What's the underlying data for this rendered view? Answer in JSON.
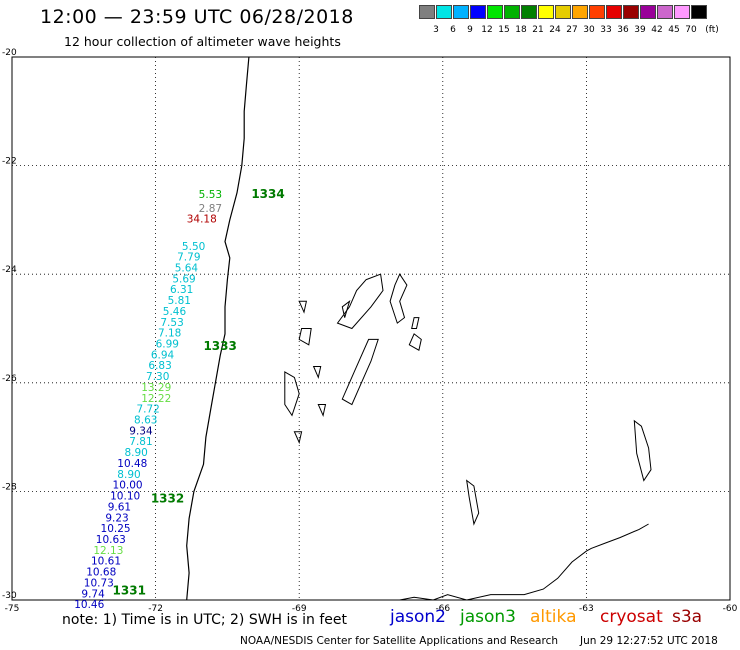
{
  "title": "12:00 — 23:59 UTC 06/28/2018",
  "subtitle": "12 hour collection of altimeter wave heights",
  "scale": {
    "unit": "(ft)",
    "colors": [
      "#7f7f7f",
      "#00e5e5",
      "#00b2ff",
      "#0000ff",
      "#00e500",
      "#00b200",
      "#008000",
      "#ffff00",
      "#e5cc00",
      "#ffa500",
      "#ff3f00",
      "#e50000",
      "#990000",
      "#990099",
      "#cc66cc",
      "#ff99ff",
      "#000000"
    ],
    "labels": [
      "3",
      "6",
      "9",
      "12",
      "15",
      "18",
      "21",
      "24",
      "27",
      "30",
      "33",
      "36",
      "39",
      "42",
      "45",
      "70"
    ]
  },
  "axes": {
    "lat_labels": [
      "-20",
      "-22",
      "-24",
      "-26",
      "-28",
      "-30"
    ],
    "lon_labels": [
      "-75",
      "-72",
      "-69",
      "-66",
      "-63",
      "-60"
    ],
    "lat_range": [
      -30,
      -20
    ],
    "lon_range": [
      -75,
      -60
    ],
    "grid": true
  },
  "passes": [
    {
      "label": "1334",
      "color": "#007a00",
      "lon": -70.0,
      "lat": -22.6
    },
    {
      "label": "1333",
      "color": "#007a00",
      "lon": -71.0,
      "lat": -25.4
    },
    {
      "label": "1332",
      "color": "#007a00",
      "lon": -72.1,
      "lat": -28.2
    },
    {
      "label": "1331",
      "color": "#007a00",
      "lon": -72.9,
      "lat": -29.9
    }
  ],
  "wave_labels": [
    {
      "text": "5.53",
      "color": "#00b200",
      "lon": -71.1,
      "lat": -22.6
    },
    {
      "text": "2.87",
      "color": "#7f7f7f",
      "lon": -71.1,
      "lat": -22.85
    },
    {
      "text": "34.18",
      "color": "#b00000",
      "lon": -71.35,
      "lat": -23.05
    },
    {
      "text": "5.50",
      "color": "#00c0d0",
      "lon": -71.45,
      "lat": -23.55
    },
    {
      "text": "7.79",
      "color": "#00c0d0",
      "lon": -71.55,
      "lat": -23.75
    },
    {
      "text": "5.64",
      "color": "#00c0d0",
      "lon": -71.6,
      "lat": -23.95
    },
    {
      "text": "5.69",
      "color": "#00c0d0",
      "lon": -71.65,
      "lat": -24.15
    },
    {
      "text": "6.31",
      "color": "#00c0d0",
      "lon": -71.7,
      "lat": -24.35
    },
    {
      "text": "5.81",
      "color": "#00c0d0",
      "lon": -71.75,
      "lat": -24.55
    },
    {
      "text": "5.46",
      "color": "#00c0d0",
      "lon": -71.85,
      "lat": -24.75
    },
    {
      "text": "7.53",
      "color": "#00c0d0",
      "lon": -71.9,
      "lat": -24.95
    },
    {
      "text": "7.18",
      "color": "#00c0d0",
      "lon": -71.95,
      "lat": -25.15
    },
    {
      "text": "6.99",
      "color": "#00c0d0",
      "lon": -72.0,
      "lat": -25.35
    },
    {
      "text": "6.94",
      "color": "#00c0d0",
      "lon": -72.1,
      "lat": -25.55
    },
    {
      "text": "6.83",
      "color": "#00c0d0",
      "lon": -72.15,
      "lat": -25.75
    },
    {
      "text": "7.30",
      "color": "#00c0d0",
      "lon": -72.2,
      "lat": -25.95
    },
    {
      "text": "13.29",
      "color": "#66dd44",
      "lon": -72.3,
      "lat": -26.15
    },
    {
      "text": "12.22",
      "color": "#66dd44",
      "lon": -72.3,
      "lat": -26.35
    },
    {
      "text": "7.72",
      "color": "#00c0d0",
      "lon": -72.4,
      "lat": -26.55
    },
    {
      "text": "8.63",
      "color": "#00c0d0",
      "lon": -72.45,
      "lat": -26.75
    },
    {
      "text": "9.34",
      "color": "#000080",
      "lon": -72.55,
      "lat": -26.95
    },
    {
      "text": "7.81",
      "color": "#00c0d0",
      "lon": -72.55,
      "lat": -27.15
    },
    {
      "text": "8.90",
      "color": "#00c0d0",
      "lon": -72.65,
      "lat": -27.35
    },
    {
      "text": "10.48",
      "color": "#0000c0",
      "lon": -72.8,
      "lat": -27.55
    },
    {
      "text": "8.90",
      "color": "#00c0d0",
      "lon": -72.8,
      "lat": -27.75
    },
    {
      "text": "10.00",
      "color": "#0000c0",
      "lon": -72.9,
      "lat": -27.95
    },
    {
      "text": "10.10",
      "color": "#0000c0",
      "lon": -72.95,
      "lat": -28.15
    },
    {
      "text": "9.61",
      "color": "#0000c0",
      "lon": -73.0,
      "lat": -28.35
    },
    {
      "text": "9.23",
      "color": "#0000c0",
      "lon": -73.05,
      "lat": -28.55
    },
    {
      "text": "10.25",
      "color": "#0000c0",
      "lon": -73.15,
      "lat": -28.75
    },
    {
      "text": "10.63",
      "color": "#0000c0",
      "lon": -73.25,
      "lat": -28.95
    },
    {
      "text": "12.13",
      "color": "#66dd44",
      "lon": -73.3,
      "lat": -29.15
    },
    {
      "text": "10.61",
      "color": "#0000c0",
      "lon": -73.35,
      "lat": -29.35
    },
    {
      "text": "10.68",
      "color": "#0000c0",
      "lon": -73.45,
      "lat": -29.55
    },
    {
      "text": "10.73",
      "color": "#0000c0",
      "lon": -73.5,
      "lat": -29.75
    },
    {
      "text": "9.74",
      "color": "#0000c0",
      "lon": -73.55,
      "lat": -29.95
    },
    {
      "text": "10.46",
      "color": "#0000c0",
      "lon": -73.7,
      "lat": -30.15
    }
  ],
  "coastline": [
    [
      -70.05,
      -20.0
    ],
    [
      -70.1,
      -20.5
    ],
    [
      -70.15,
      -21.0
    ],
    [
      -70.15,
      -21.5
    ],
    [
      -70.2,
      -22.0
    ],
    [
      -70.3,
      -22.5
    ],
    [
      -70.45,
      -23.0
    ],
    [
      -70.55,
      -23.4
    ],
    [
      -70.45,
      -23.7
    ],
    [
      -70.5,
      -24.1
    ],
    [
      -70.55,
      -24.6
    ],
    [
      -70.55,
      -25.1
    ],
    [
      -70.65,
      -25.5
    ],
    [
      -70.75,
      -26.0
    ],
    [
      -70.85,
      -26.5
    ],
    [
      -70.95,
      -27.0
    ],
    [
      -71.0,
      -27.5
    ],
    [
      -71.2,
      -28.0
    ],
    [
      -71.3,
      -28.5
    ],
    [
      -71.35,
      -29.0
    ],
    [
      -71.3,
      -29.5
    ],
    [
      -71.35,
      -30.0
    ]
  ],
  "lakes": [
    [
      [
        -67.6,
        -24.1
      ],
      [
        -67.3,
        -24.0
      ],
      [
        -67.25,
        -24.3
      ],
      [
        -67.5,
        -24.6
      ],
      [
        -67.9,
        -25.0
      ],
      [
        -68.2,
        -24.9
      ],
      [
        -67.95,
        -24.6
      ],
      [
        -67.8,
        -24.3
      ]
    ],
    [
      [
        -67.0,
        -24.2
      ],
      [
        -66.9,
        -24.0
      ],
      [
        -66.75,
        -24.2
      ],
      [
        -66.9,
        -24.5
      ],
      [
        -66.8,
        -24.8
      ],
      [
        -66.95,
        -24.9
      ],
      [
        -67.1,
        -24.5
      ]
    ],
    [
      [
        -67.55,
        -25.2
      ],
      [
        -67.35,
        -25.2
      ],
      [
        -67.5,
        -25.6
      ],
      [
        -67.7,
        -26.0
      ],
      [
        -67.9,
        -26.4
      ],
      [
        -68.1,
        -26.3
      ],
      [
        -67.85,
        -25.8
      ]
    ],
    [
      [
        -68.1,
        -24.6
      ],
      [
        -67.95,
        -24.5
      ],
      [
        -68.05,
        -24.8
      ]
    ],
    [
      [
        -66.6,
        -24.8
      ],
      [
        -66.5,
        -24.8
      ],
      [
        -66.55,
        -25.0
      ],
      [
        -66.65,
        -25.0
      ]
    ],
    [
      [
        -66.6,
        -25.1
      ],
      [
        -66.45,
        -25.2
      ],
      [
        -66.5,
        -25.4
      ],
      [
        -66.7,
        -25.3
      ]
    ],
    [
      [
        -69.0,
        -24.5
      ],
      [
        -68.85,
        -24.5
      ],
      [
        -68.9,
        -24.7
      ]
    ],
    [
      [
        -68.95,
        -25.0
      ],
      [
        -68.75,
        -25.0
      ],
      [
        -68.8,
        -25.3
      ],
      [
        -69.0,
        -25.2
      ]
    ],
    [
      [
        -68.7,
        -25.7
      ],
      [
        -68.55,
        -25.7
      ],
      [
        -68.6,
        -25.9
      ]
    ],
    [
      [
        -69.3,
        -25.8
      ],
      [
        -69.1,
        -25.9
      ],
      [
        -69.0,
        -26.2
      ],
      [
        -69.15,
        -26.6
      ],
      [
        -69.3,
        -26.4
      ]
    ],
    [
      [
        -68.6,
        -26.4
      ],
      [
        -68.45,
        -26.4
      ],
      [
        -68.5,
        -26.6
      ]
    ],
    [
      [
        -69.1,
        -26.9
      ],
      [
        -68.95,
        -26.9
      ],
      [
        -69.0,
        -27.1
      ]
    ],
    [
      [
        -62.0,
        -26.7
      ],
      [
        -61.85,
        -26.8
      ],
      [
        -61.7,
        -27.2
      ],
      [
        -61.65,
        -27.6
      ],
      [
        -61.8,
        -27.8
      ],
      [
        -61.95,
        -27.3
      ]
    ],
    [
      [
        -65.5,
        -27.8
      ],
      [
        -65.35,
        -27.9
      ],
      [
        -65.25,
        -28.4
      ],
      [
        -65.35,
        -28.6
      ],
      [
        -65.45,
        -28.1
      ]
    ]
  ],
  "river": [
    [
      -63.0,
      -29.1
    ],
    [
      -63.3,
      -29.3
    ],
    [
      -63.6,
      -29.6
    ],
    [
      -63.9,
      -29.8
    ],
    [
      -64.3,
      -29.9
    ],
    [
      -65.0,
      -29.9
    ],
    [
      -65.5,
      -30.0
    ],
    [
      -65.9,
      -29.9
    ],
    [
      -66.2,
      -30.0
    ],
    [
      -66.6,
      -29.95
    ],
    [
      -66.9,
      -30.0
    ]
  ],
  "river_tail": [
    [
      -61.7,
      -28.6
    ],
    [
      -61.9,
      -28.7
    ],
    [
      -62.3,
      -28.85
    ],
    [
      -62.6,
      -28.95
    ],
    [
      -62.9,
      -29.05
    ],
    [
      -63.0,
      -29.1
    ]
  ],
  "note": "note:  1) Time is in UTC;  2) SWH is in feet",
  "satellites": [
    {
      "name": "jason2",
      "color": "#0000cc"
    },
    {
      "name": "jason3",
      "color": "#009900"
    },
    {
      "name": "altika",
      "color": "#ff9900"
    },
    {
      "name": "cryosat",
      "color": "#cc0000"
    },
    {
      "name": "s3a",
      "color": "#990000"
    }
  ],
  "credit": "NOAA/NESDIS Center for Satellite Applications and Research",
  "timestamp": "Jun 29 12:27:52 UTC 2018"
}
